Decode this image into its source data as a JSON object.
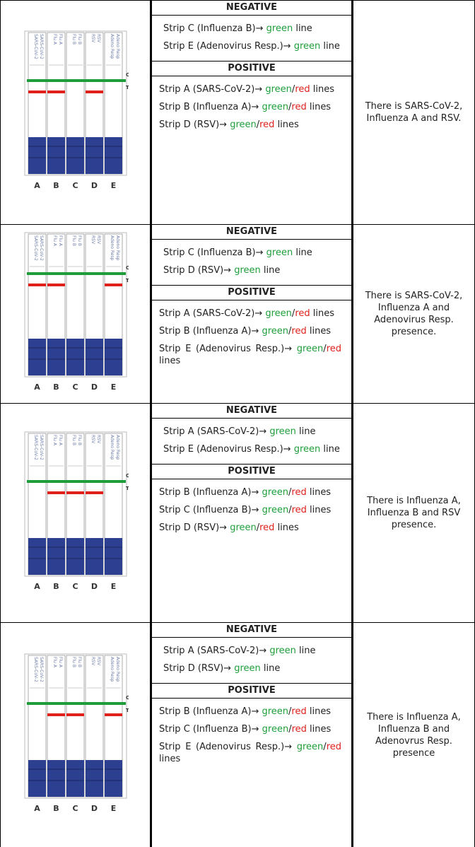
{
  "strip_image": {
    "labels": [
      "SARS-CoV-2",
      "Flu A",
      "Flu B",
      "RSV",
      "Adeno Resp"
    ],
    "letters": [
      "A",
      "B",
      "C",
      "D",
      "E"
    ],
    "control": "C",
    "test": "T"
  },
  "rows": [
    {
      "negative": {
        "title": "NEGATIVE",
        "items": [
          [
            {
              "text": "Strip C (Influenza B)→ "
            },
            {
              "text": "green",
              "color": "#1e9e3a"
            },
            {
              "text": " line"
            }
          ],
          [
            {
              "text": "Strip E (Adenovirus Resp.)→ "
            },
            {
              "text": "green",
              "color": "#1e9e3a"
            },
            {
              "text": " line"
            }
          ]
        ]
      },
      "positive": {
        "title": "POSITIVE",
        "items": [
          [
            {
              "text": "Strip A (SARS-CoV-2)→ "
            },
            {
              "text": "green",
              "color": "#1e9e3a"
            },
            {
              "text": "/"
            },
            {
              "text": "red",
              "color": "#e0201b"
            },
            {
              "text": " lines"
            }
          ],
          [
            {
              "text": "Strip B (Influenza A)→ "
            },
            {
              "text": "green",
              "color": "#1e9e3a"
            },
            {
              "text": "/"
            },
            {
              "text": "red",
              "color": "#e0201b"
            },
            {
              "text": " lines"
            }
          ],
          [
            {
              "text": "Strip D (RSV)→ "
            },
            {
              "text": "green",
              "color": "#1e9e3a"
            },
            {
              "text": "/"
            },
            {
              "text": "red",
              "color": "#e0201b"
            },
            {
              "text": " lines"
            }
          ]
        ]
      },
      "conclusion": "There is SARS-CoV-2, Influenza A and RSV."
    },
    {
      "negative": {
        "title": "NEGATIVE",
        "items": [
          [
            {
              "text": "Strip C (Influenza B)→ "
            },
            {
              "text": "green",
              "color": "#1e9e3a"
            },
            {
              "text": " line"
            }
          ],
          [
            {
              "text": "Strip D (RSV)→ "
            },
            {
              "text": "green",
              "color": "#1e9e3a"
            },
            {
              "text": " line"
            }
          ]
        ]
      },
      "positive": {
        "title": "POSITIVE",
        "items": [
          [
            {
              "text": "Strip A (SARS-CoV-2)→ "
            },
            {
              "text": "green",
              "color": "#1e9e3a"
            },
            {
              "text": "/"
            },
            {
              "text": "red",
              "color": "#e0201b"
            },
            {
              "text": " lines"
            }
          ],
          [
            {
              "text": "Strip B (Influenza A)→ "
            },
            {
              "text": "green",
              "color": "#1e9e3a"
            },
            {
              "text": "/"
            },
            {
              "text": "red",
              "color": "#e0201b"
            },
            {
              "text": " lines"
            }
          ],
          [
            {
              "text": "Strip E (Adenovirus Resp.)→ "
            },
            {
              "text": "green",
              "color": "#1e9e3a"
            },
            {
              "text": "/"
            },
            {
              "text": "red",
              "color": "#e0201b"
            },
            {
              "text": " lines"
            }
          ]
        ]
      },
      "conclusion": "There is SARS-CoV-2, Influenza A and Adenovirus Resp. presence."
    },
    {
      "negative": {
        "title": "NEGATIVE",
        "items": [
          [
            {
              "text": "Strip A (SARS-CoV-2)→ "
            },
            {
              "text": "green",
              "color": "#1e9e3a"
            },
            {
              "text": " line"
            }
          ],
          [
            {
              "text": "Strip E (Adenovirus Resp.)→ "
            },
            {
              "text": "green",
              "color": "#1e9e3a"
            },
            {
              "text": " line"
            }
          ]
        ]
      },
      "positive": {
        "title": "POSITIVE",
        "items": [
          [
            {
              "text": "Strip B (Influenza A)→ "
            },
            {
              "text": "green",
              "color": "#1e9e3a"
            },
            {
              "text": "/"
            },
            {
              "text": "red",
              "color": "#e0201b"
            },
            {
              "text": " lines"
            }
          ],
          [
            {
              "text": "Strip C (Influenza B)→ "
            },
            {
              "text": "green",
              "color": "#1e9e3a"
            },
            {
              "text": "/"
            },
            {
              "text": "red",
              "color": "#e0201b"
            },
            {
              "text": " lines"
            }
          ],
          [
            {
              "text": "Strip D (RSV)→ "
            },
            {
              "text": "green",
              "color": "#1e9e3a"
            },
            {
              "text": "/"
            },
            {
              "text": "red",
              "color": "#e0201b"
            },
            {
              "text": " lines"
            }
          ]
        ]
      },
      "conclusion": "There is Influenza A, Influenza B and RSV presence."
    },
    {
      "negative": {
        "title": "NEGATIVE",
        "items": [
          [
            {
              "text": "Strip A (SARS-CoV-2)→ "
            },
            {
              "text": "green",
              "color": "#1e9e3a"
            },
            {
              "text": " line"
            }
          ],
          [
            {
              "text": "Strip D (RSV)→ "
            },
            {
              "text": "green",
              "color": "#1e9e3a"
            },
            {
              "text": " line"
            }
          ]
        ]
      },
      "positive": {
        "title": "POSITIVE",
        "items": [
          [
            {
              "text": "Strip B (Influenza A)→ "
            },
            {
              "text": "green",
              "color": "#1e9e3a"
            },
            {
              "text": "/"
            },
            {
              "text": "red",
              "color": "#e0201b"
            },
            {
              "text": " lines"
            }
          ],
          [
            {
              "text": "Strip C (Influenza B)→ "
            },
            {
              "text": "green",
              "color": "#1e9e3a"
            },
            {
              "text": "/"
            },
            {
              "text": "red",
              "color": "#e0201b"
            },
            {
              "text": " lines"
            }
          ],
          [
            {
              "text": "Strip E (Adenovirus Resp.)→ "
            },
            {
              "text": "green",
              "color": "#1e9e3a"
            },
            {
              "text": "/"
            },
            {
              "text": "red",
              "color": "#e0201b"
            },
            {
              "text": " lines"
            }
          ]
        ]
      },
      "conclusion": "There is Influenza A, Influenza B and Adenovrus Resp. presence"
    }
  ]
}
